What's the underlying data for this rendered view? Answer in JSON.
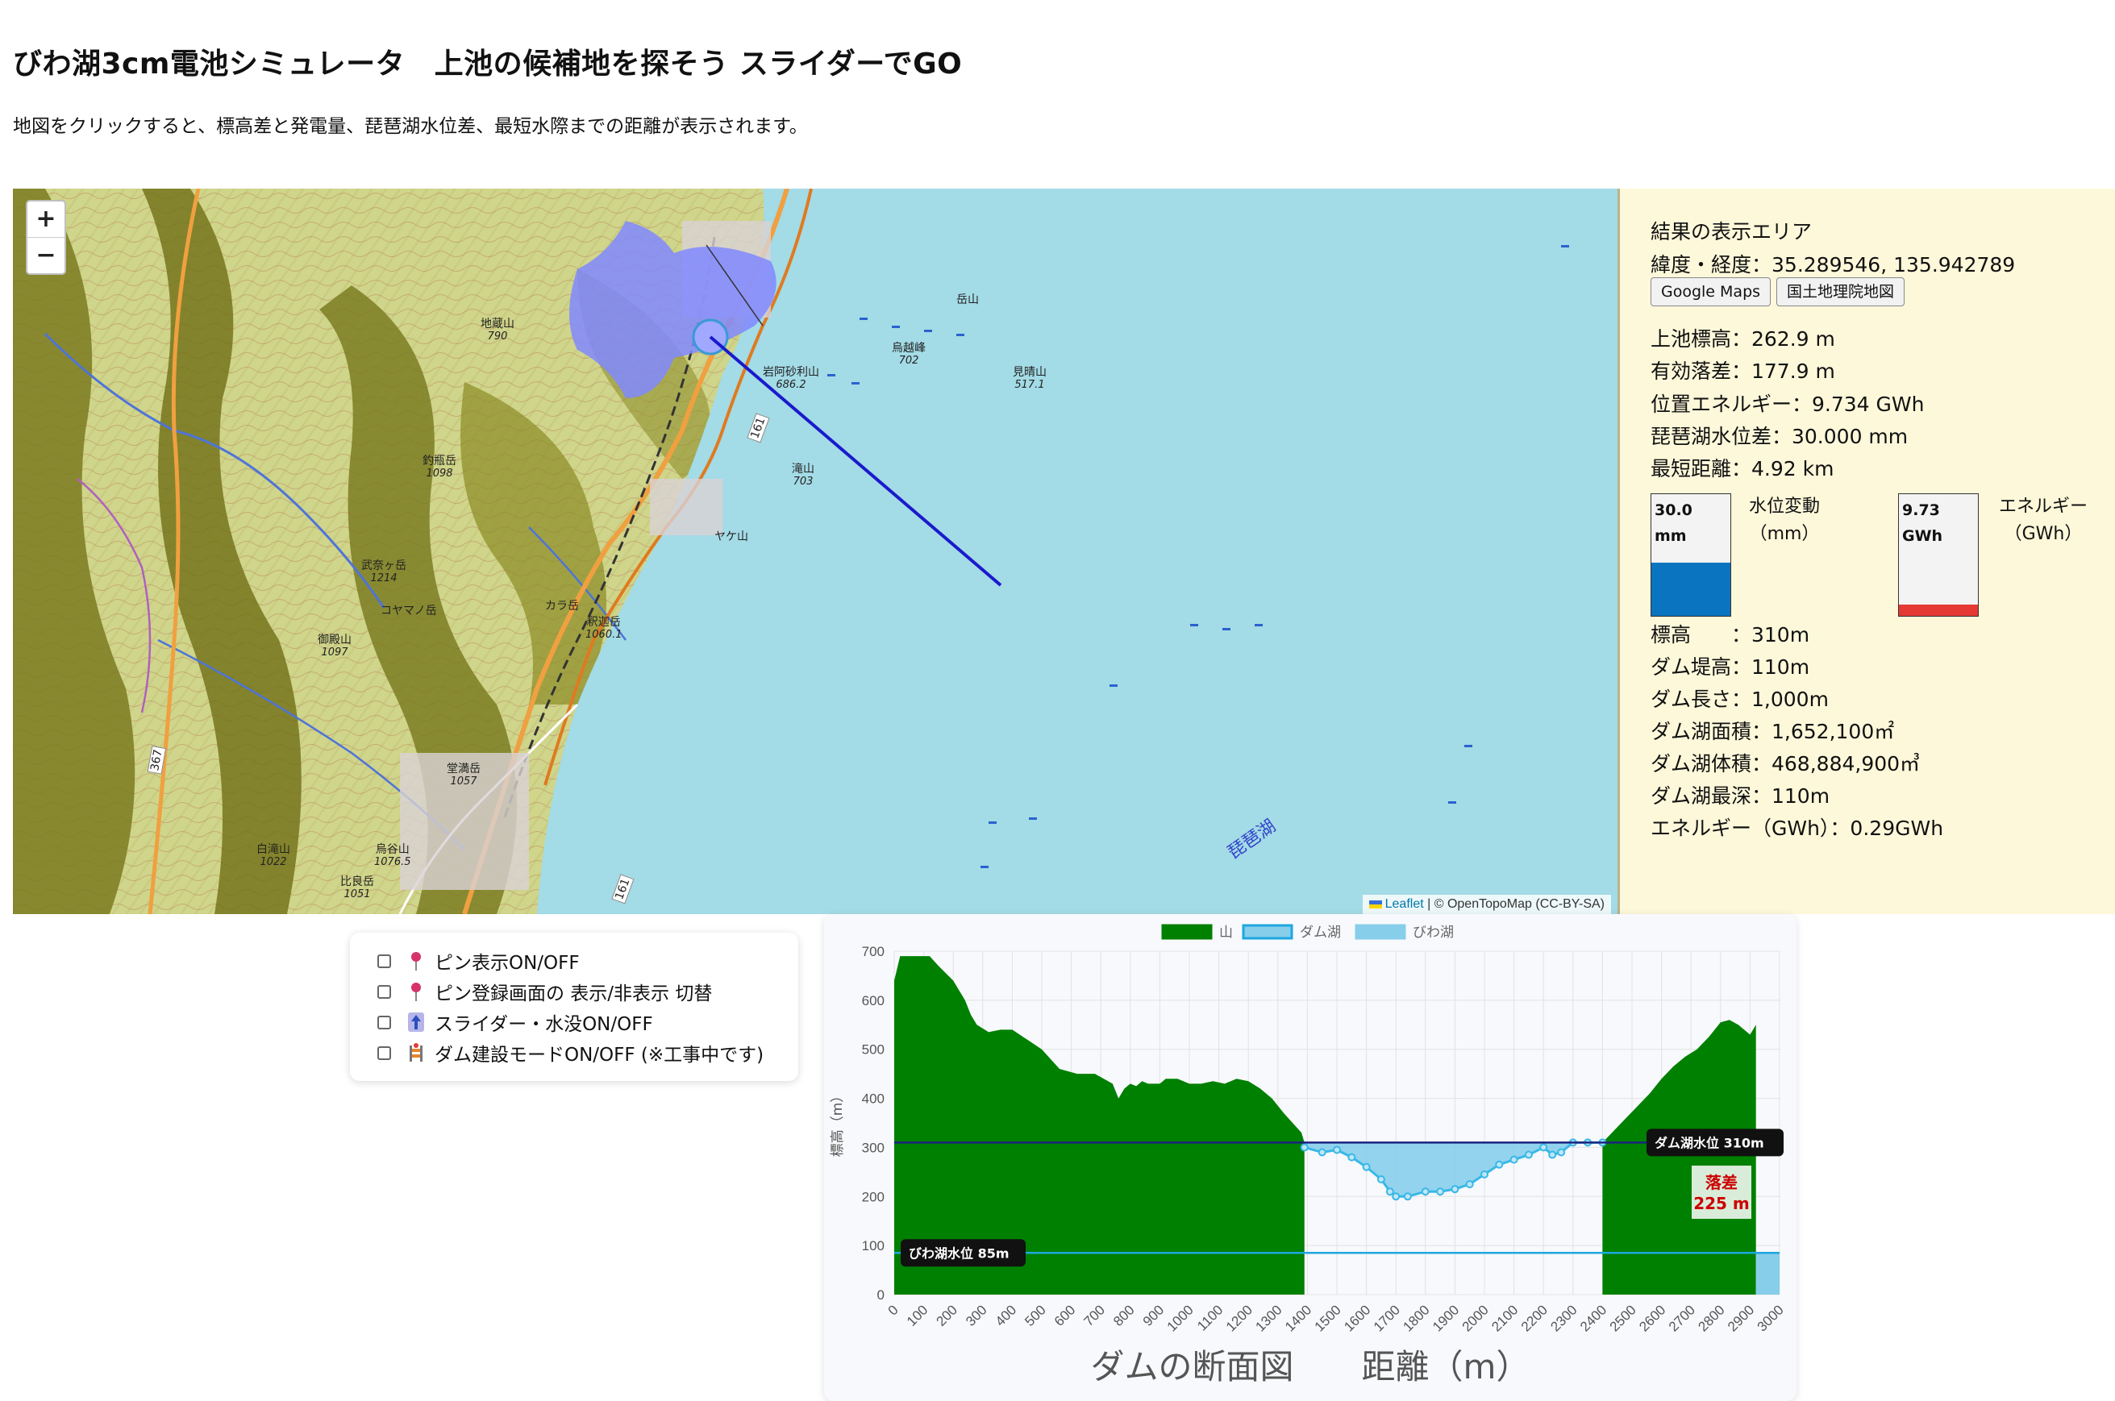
{
  "header": {
    "title": "びわ湖3cm電池シミュレータ　上池の候補地を探そう スライダーでGO",
    "subtitle": "地図をクリックすると、標高差と発電量、琵琶湖水位差、最短水際までの距離が表示されます。"
  },
  "map": {
    "zoom_in": "+",
    "zoom_out": "−",
    "attribution_link": "Leaflet",
    "attribution_text": " | © OpenTopoMap (CC-BY-SA)",
    "road_number_1": "161",
    "road_number_2": "161",
    "road_number_3": "367",
    "peaks": [
      {
        "name": "地蔵山",
        "elev": "790"
      },
      {
        "name": "岩阿砂利山",
        "elev": "686.2"
      },
      {
        "name": "烏越峰",
        "elev": "702"
      },
      {
        "name": "岳山",
        "elev": ""
      },
      {
        "name": "見晴山",
        "elev": "517.1"
      },
      {
        "name": "釣瓶岳",
        "elev": "1098"
      },
      {
        "name": "滝山",
        "elev": "703"
      },
      {
        "name": "ヤケ山",
        "elev": ""
      },
      {
        "name": "武奈ヶ岳",
        "elev": "1214"
      },
      {
        "name": "コヤマノ岳",
        "elev": ""
      },
      {
        "name": "カラ岳",
        "elev": ""
      },
      {
        "name": "釈迦岳",
        "elev": "1060.1"
      },
      {
        "name": "御殿山",
        "elev": "1097"
      },
      {
        "name": "堂満岳",
        "elev": "1057"
      },
      {
        "name": "白滝山",
        "elev": "1022"
      },
      {
        "name": "烏谷山",
        "elev": "1076.5"
      },
      {
        "name": "比良岳",
        "elev": "1051"
      }
    ],
    "lake_text": "琵琶湖"
  },
  "results": {
    "heading": "結果の表示エリア",
    "latlng_label": "緯度・経度：",
    "latlng_value": "35.289546, 135.942789",
    "google_maps_button": "Google Maps",
    "gsi_button": "国土地理院地図",
    "lines": [
      "上池標高：262.9 m",
      "有効落差：177.9 m",
      "位置エネルギー：9.734 GWh",
      "琵琶湖水位差：30.000 mm",
      "最短距離：4.92 km"
    ],
    "gauge_water": {
      "value": "30.0\nmm",
      "label": "水位変動\n（mm）",
      "fill_fraction": 0.44,
      "color": "#0a74c0"
    },
    "gauge_energy": {
      "value": "9.73\nGWh",
      "label": "エネルギー\n（GWh）",
      "fill_fraction": 0.09,
      "color": "#e53935"
    },
    "dam_lines": [
      "標高　　：310m",
      "ダム堤高：110m",
      "ダム長さ：1,000m",
      "ダム湖面積：1,652,100㎡",
      "ダム湖体積：468,884,900㎥",
      "ダム湖最深：110m",
      "エネルギー（GWh）：0.29GWh"
    ]
  },
  "controls": {
    "items": [
      {
        "label": "ピン表示ON/OFF",
        "checked": false,
        "icon": "pushpin-icon"
      },
      {
        "label": "ピン登録画面の 表示/非表示 切替",
        "checked": false,
        "icon": "pushpin-icon"
      },
      {
        "label": "スライダー・水没ON/OFF",
        "checked": false,
        "icon": "up-arrow-icon"
      },
      {
        "label": "ダム建設モードON/OFF (※工事中です)",
        "checked": false,
        "icon": "construction-icon"
      }
    ]
  },
  "chart_data": {
    "type": "area",
    "title": "ダムの断面図　　距離（m）",
    "xlabel": "距離（m）",
    "ylabel": "標高（m）",
    "xlim": [
      0,
      3000
    ],
    "ylim": [
      0,
      700
    ],
    "x_ticks": [
      0,
      100,
      200,
      300,
      400,
      500,
      600,
      700,
      800,
      900,
      1000,
      1100,
      1200,
      1300,
      1400,
      1500,
      1600,
      1700,
      1800,
      1900,
      2000,
      2100,
      2200,
      2300,
      2400,
      2500,
      2600,
      2700,
      2800,
      2900,
      3000
    ],
    "y_ticks": [
      0,
      100,
      200,
      300,
      400,
      500,
      600,
      700
    ],
    "legend": [
      "山",
      "ダム湖",
      "びわ湖"
    ],
    "legend_position": "top",
    "grid": true,
    "series": [
      {
        "name": "山",
        "color": "#008000",
        "x": [
          0,
          20,
          120,
          150,
          200,
          240,
          260,
          280,
          320,
          360,
          400,
          450,
          500,
          530,
          560,
          620,
          680,
          740,
          760,
          780,
          800,
          820,
          840,
          860,
          900,
          920,
          960,
          1000,
          1040,
          1080,
          1120,
          1160,
          1200,
          1240,
          1280,
          1320,
          1380,
          1390
        ],
        "y": [
          640,
          690,
          690,
          670,
          640,
          600,
          570,
          550,
          535,
          540,
          540,
          520,
          500,
          480,
          460,
          450,
          450,
          430,
          400,
          420,
          430,
          425,
          435,
          430,
          430,
          440,
          440,
          430,
          430,
          435,
          430,
          440,
          435,
          420,
          400,
          370,
          330,
          310
        ]
      },
      {
        "name": "山",
        "color": "#008000",
        "x": [
          2400,
          2440,
          2480,
          2520,
          2560,
          2600,
          2640,
          2680,
          2720,
          2760,
          2800,
          2830,
          2860,
          2880,
          2900,
          2920
        ],
        "y": [
          310,
          335,
          360,
          385,
          410,
          440,
          465,
          485,
          500,
          525,
          555,
          560,
          550,
          540,
          530,
          550
        ]
      },
      {
        "name": "ダム湖",
        "color": "#87ceeb",
        "x": [
          1390,
          1450,
          1500,
          1550,
          1600,
          1650,
          1680,
          1700,
          1740,
          1800,
          1850,
          1900,
          1950,
          2000,
          2050,
          2100,
          2150,
          2200,
          2230,
          2260,
          2300,
          2350,
          2400
        ],
        "y": [
          300,
          290,
          295,
          280,
          260,
          235,
          210,
          200,
          200,
          210,
          210,
          215,
          225,
          245,
          265,
          275,
          285,
          300,
          285,
          290,
          310,
          310,
          310
        ]
      },
      {
        "name": "びわ湖",
        "color": "#87ceeb",
        "x": [
          2920,
          3000
        ],
        "y": [
          85,
          85
        ]
      }
    ],
    "annotations": [
      {
        "text": "ダム湖水位 310m",
        "y": 310
      },
      {
        "text": "びわ湖水位 85m",
        "y": 85
      },
      {
        "text": "落差",
        "y": 225
      },
      {
        "text": "225 m",
        "y": 225
      }
    ]
  }
}
